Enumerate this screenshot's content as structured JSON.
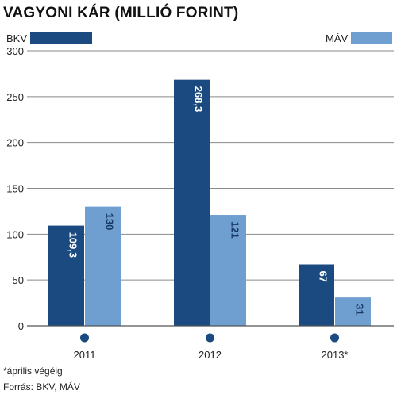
{
  "chart_data": {
    "type": "bar",
    "title": "VAGYONI KÁR (MILLIÓ FORINT)",
    "categories": [
      "2011",
      "2012",
      "2013*"
    ],
    "series": [
      {
        "name": "BKV",
        "values": [
          109.3,
          268.3,
          67
        ],
        "labels": [
          "109,3",
          "268,3",
          "67"
        ],
        "color": "#1a4a80"
      },
      {
        "name": "MÁV",
        "values": [
          130,
          121,
          31
        ],
        "labels": [
          "130",
          "121",
          "31"
        ],
        "color": "#6f9fd0"
      }
    ],
    "ylim": [
      0,
      300
    ],
    "yticks": [
      "0",
      "50",
      "100",
      "150",
      "200",
      "250",
      "300"
    ],
    "grid": true,
    "legend": "top",
    "footnote": "*április végéig",
    "source": "Forrás: BKV, MÁV",
    "marker_color": "#1a4a80"
  }
}
